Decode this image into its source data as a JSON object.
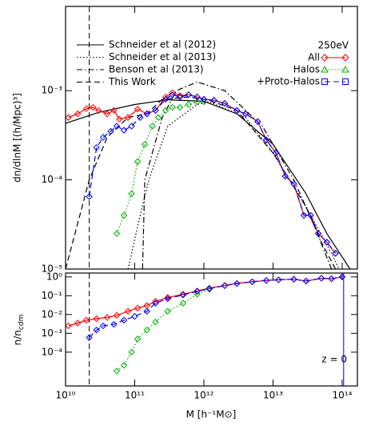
{
  "chart_data": [
    {
      "type": "line",
      "xscale": "log",
      "yscale": "log",
      "ylabel": "dn/dlnM [(h/Mpc)³]",
      "xlim": [
        10000000000.0,
        166000000000000.0
      ],
      "ylim": [
        1e-05,
        0.0088
      ],
      "yticks": [
        {
          "value": 0.001,
          "label": "10⁻³"
        },
        {
          "value": 0.0001,
          "label": "10⁻⁴"
        },
        {
          "value": 1e-05,
          "label": "10⁻⁵"
        }
      ],
      "legend_title": "250eV",
      "vlines": [
        {
          "x": 22000000000.0,
          "color": "#000000",
          "style": "dashed"
        }
      ],
      "series": [
        {
          "name": "Schneider et al (2012)",
          "color": "#000000",
          "style": "solid",
          "x": [
            10000000000.0,
            30000000000.0,
            100000000000.0,
            300000000000.0,
            1000000000000.0,
            3000000000000.0,
            10000000000000.0,
            30000000000000.0,
            60000000000000.0,
            130000000000000.0
          ],
          "values": [
            0.00043,
            0.00057,
            0.0007,
            0.00079,
            0.00076,
            0.00055,
            0.00025,
            7e-05,
            2.5e-05,
            1e-05
          ]
        },
        {
          "name": "Schneider et al (2013)",
          "color": "#000000",
          "style": "dotted",
          "x": [
            80000000000.0,
            110000000000.0,
            160000000000.0,
            300000000000.0,
            800000000000.0,
            1200000000000.0,
            4000000000000.0,
            10000000000000.0,
            30000000000000.0,
            70000000000000.0,
            90000000000000.0
          ],
          "values": [
            1e-05,
            3e-05,
            0.0001,
            0.0004,
            0.0007,
            0.00075,
            0.0005,
            0.0002,
            5e-05,
            1.5e-05,
            1e-05
          ]
        },
        {
          "name": "Benson et al (2013)",
          "color": "#000000",
          "style": "dashdot",
          "x": [
            130000000000.0,
            140000000000.0,
            250000000000.0,
            400000000000.0,
            800000000000.0,
            2000000000000.0,
            7000000000000.0,
            20000000000000.0,
            40000000000000.0,
            70000000000000.0
          ],
          "values": [
            1e-05,
            0.0001,
            0.0005,
            0.001,
            0.00125,
            0.001,
            0.0004,
            0.0001,
            3e-05,
            1e-05
          ]
        },
        {
          "name": "This Work",
          "color": "#000000",
          "style": "dashed",
          "x": [
            10000000000.0,
            22000000000.0,
            40000000000.0,
            80000000000.0,
            150000000000.0,
            250000000000.0,
            600000000000.0,
            1200000000000.0,
            3000000000000.0,
            10000000000000.0,
            30000000000000.0,
            50000000000000.0,
            80000000000000.0
          ],
          "values": [
            1e-05,
            0.0001,
            0.0003,
            0.0005,
            0.00055,
            0.0008,
            0.00085,
            0.00078,
            0.0006,
            0.0002,
            5e-05,
            2e-05,
            1e-05
          ]
        },
        {
          "name": "All",
          "color": "#ff0000",
          "style": "solid",
          "marker": "diamond",
          "legend_marker": "diamond",
          "x": [
            11000000000.0,
            15000000000.0,
            20000000000.0,
            25000000000.0,
            30000000000.0,
            40000000000.0,
            50000000000.0,
            60000000000.0,
            80000000000.0,
            110000000000.0,
            150000000000.0,
            200000000000.0,
            280000000000.0,
            350000000000.0,
            450000000000.0,
            600000000000.0,
            800000000000.0,
            1000000000000.0,
            1400000000000.0,
            2000000000000.0,
            3000000000000.0,
            4000000000000.0,
            6000000000000.0,
            8000000000000.0,
            11000000000000.0,
            15000000000000.0,
            20000000000000.0,
            28000000000000.0,
            35000000000000.0,
            45000000000000.0,
            60000000000000.0,
            80000000000000.0
          ],
          "values": [
            0.0005,
            0.00055,
            0.00063,
            0.00065,
            0.0006,
            0.00055,
            0.0006,
            0.00048,
            0.0005,
            0.00062,
            0.00055,
            0.0006,
            0.00085,
            0.00095,
            0.00088,
            0.0009,
            0.00085,
            0.0008,
            0.00078,
            0.00072,
            0.0006,
            0.00055,
            0.00045,
            0.00028,
            0.0002,
            0.00011,
            9e-05,
            4e-05,
            4e-05,
            2.5e-05,
            2e-05,
            1.5e-05
          ]
        },
        {
          "name": "Halos",
          "color": "#00b000",
          "style": "dotted",
          "marker": "diamond",
          "legend_marker": "triangle",
          "x": [
            55000000000.0,
            70000000000.0,
            90000000000.0,
            110000000000.0,
            140000000000.0,
            180000000000.0,
            220000000000.0,
            280000000000.0,
            350000000000.0,
            450000000000.0,
            600000000000.0,
            800000000000.0,
            1000000000000.0
          ],
          "values": [
            2.5e-05,
            4e-05,
            7e-05,
            0.00016,
            0.00025,
            0.0004,
            0.0005,
            0.0006,
            0.00065,
            0.00065,
            0.0007,
            0.00075,
            0.00075
          ]
        },
        {
          "name": "+Proto-Halos",
          "color": "#0000ff",
          "style": "dashed",
          "marker": "diamond",
          "legend_marker": "square",
          "x": [
            22000000000.0,
            28000000000.0,
            35000000000.0,
            45000000000.0,
            55000000000.0,
            70000000000.0,
            90000000000.0,
            120000000000.0,
            150000000000.0,
            200000000000.0,
            280000000000.0,
            350000000000.0,
            450000000000.0,
            600000000000.0,
            800000000000.0,
            1000000000000.0,
            1400000000000.0,
            2000000000000.0,
            3000000000000.0,
            4000000000000.0,
            6000000000000.0,
            8000000000000.0,
            11000000000000.0,
            15000000000000.0,
            20000000000000.0,
            28000000000000.0,
            35000000000000.0,
            45000000000000.0,
            60000000000000.0,
            80000000000000.0
          ],
          "values": [
            6.5e-05,
            0.00023,
            0.0003,
            0.00035,
            0.0004,
            0.00036,
            0.0004,
            0.0005,
            0.00055,
            0.0006,
            0.0008,
            0.0009,
            0.00085,
            0.0009,
            0.00085,
            0.0008,
            0.00078,
            0.00072,
            0.0006,
            0.00055,
            0.00045,
            0.00028,
            0.0002,
            0.00011,
            9e-05,
            4e-05,
            4e-05,
            2.5e-05,
            2e-05,
            1.5e-05
          ]
        }
      ]
    },
    {
      "type": "line",
      "xscale": "log",
      "yscale": "log",
      "ylabel": "n/n",
      "ylabel_sub": "cdm",
      "xlabel": "M [h⁻¹M⊙]",
      "annotation": "z = 0",
      "xlim": [
        10000000000.0,
        166000000000000.0
      ],
      "ylim": [
        1.6e-06,
        1.6
      ],
      "xticks": [
        {
          "value": 10000000000.0,
          "label": "10¹⁰"
        },
        {
          "value": 100000000000.0,
          "label": "10¹¹"
        },
        {
          "value": 1000000000000.0,
          "label": "10¹²"
        },
        {
          "value": 10000000000000.0,
          "label": "10¹³"
        },
        {
          "value": 100000000000000.0,
          "label": "10¹⁴"
        }
      ],
      "yticks": [
        {
          "value": 1,
          "label": "10⁰"
        },
        {
          "value": 0.1,
          "label": "10⁻¹"
        },
        {
          "value": 0.01,
          "label": "10⁻²"
        },
        {
          "value": 0.001,
          "label": "10⁻³"
        },
        {
          "value": 0.0001,
          "label": "10⁻⁴"
        }
      ],
      "vlines": [
        {
          "x": 22000000000.0,
          "color": "#000000",
          "style": "dashed"
        },
        {
          "x": 105000000000000.0,
          "color": "#0000ff",
          "style": "solid"
        }
      ],
      "series": [
        {
          "color": "#ff0000",
          "style": "solid",
          "marker": "diamond",
          "x": [
            11000000000.0,
            15000000000.0,
            20000000000.0,
            28000000000.0,
            40000000000.0,
            55000000000.0,
            80000000000.0,
            110000000000.0,
            150000000000.0,
            200000000000.0,
            300000000000.0,
            500000000000.0,
            800000000000.0,
            1200000000000.0,
            2000000000000.0,
            3000000000000.0,
            5000000000000.0,
            8000000000000.0,
            12000000000000.0,
            20000000000000.0,
            30000000000000.0,
            50000000000000.0,
            70000000000000.0,
            100000000000000.0
          ],
          "values": [
            0.0025,
            0.0035,
            0.005,
            0.006,
            0.007,
            0.009,
            0.015,
            0.022,
            0.03,
            0.05,
            0.08,
            0.12,
            0.18,
            0.25,
            0.35,
            0.45,
            0.55,
            0.65,
            0.7,
            0.75,
            0.6,
            0.85,
            0.8,
            1
          ]
        },
        {
          "color": "#00b000",
          "style": "dotted",
          "marker": "diamond",
          "x": [
            55000000000.0,
            70000000000.0,
            90000000000.0,
            110000000000.0,
            150000000000.0,
            200000000000.0,
            300000000000.0,
            500000000000.0,
            800000000000.0,
            1200000000000.0
          ],
          "values": [
            1e-05,
            2e-05,
            0.0001,
            0.0005,
            0.0015,
            0.004,
            0.015,
            0.04,
            0.12,
            0.22
          ]
        },
        {
          "color": "#0000ff",
          "style": "dashed",
          "marker": "diamond",
          "x": [
            22000000000.0,
            28000000000.0,
            35000000000.0,
            50000000000.0,
            70000000000.0,
            100000000000.0,
            150000000000.0,
            200000000000.0,
            300000000000.0,
            500000000000.0,
            800000000000.0,
            1200000000000.0,
            2000000000000.0,
            3000000000000.0,
            5000000000000.0,
            8000000000000.0,
            12000000000000.0,
            20000000000000.0,
            30000000000000.0,
            50000000000000.0,
            70000000000000.0,
            100000000000000.0
          ],
          "values": [
            0.0006,
            0.0015,
            0.0025,
            0.003,
            0.005,
            0.008,
            0.015,
            0.04,
            0.07,
            0.11,
            0.17,
            0.24,
            0.34,
            0.44,
            0.55,
            0.65,
            0.7,
            0.75,
            0.6,
            0.85,
            0.8,
            1
          ]
        }
      ]
    }
  ]
}
